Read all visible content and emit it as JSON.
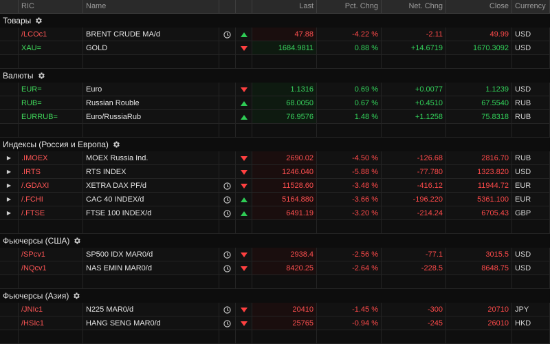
{
  "columns": {
    "ric": "RIC",
    "name": "Name",
    "last": "Last",
    "pct": "Pct. Chng",
    "net": "Net. Chng",
    "close": "Close",
    "currency": "Currency"
  },
  "sections": [
    {
      "title": "Товары",
      "rows": [
        {
          "expand": false,
          "ric": "/LCOc1",
          "ric_color": "red",
          "name": "BRENT CRUDE MA/d",
          "clock": true,
          "dir": "up",
          "last": "47.88",
          "last_color": "red",
          "pct": "-4.22 %",
          "pct_color": "red",
          "net": "-2.11",
          "net_color": "red",
          "close": "49.99",
          "close_color": "red",
          "currency": "USD"
        },
        {
          "expand": false,
          "ric": "XAU=",
          "ric_color": "green",
          "name": "GOLD",
          "clock": false,
          "dir": "down",
          "last": "1684.9811",
          "last_color": "green",
          "pct": "0.88 %",
          "pct_color": "green",
          "net": "+14.6719",
          "net_color": "green",
          "close": "1670.3092",
          "close_color": "green",
          "currency": "USD"
        }
      ]
    },
    {
      "title": "Валюты",
      "rows": [
        {
          "expand": false,
          "ric": "EUR=",
          "ric_color": "green",
          "name": "Euro",
          "clock": false,
          "dir": "down",
          "last": "1.1316",
          "last_color": "green",
          "pct": "0.69 %",
          "pct_color": "green",
          "net": "+0.0077",
          "net_color": "green",
          "close": "1.1239",
          "close_color": "green",
          "currency": "USD"
        },
        {
          "expand": false,
          "ric": "RUB=",
          "ric_color": "green",
          "name": "Russian Rouble",
          "clock": false,
          "dir": "up",
          "last": "68.0050",
          "last_color": "green",
          "pct": "0.67 %",
          "pct_color": "green",
          "net": "+0.4510",
          "net_color": "green",
          "close": "67.5540",
          "close_color": "green",
          "currency": "RUB"
        },
        {
          "expand": false,
          "ric": "EURRUB=",
          "ric_color": "green",
          "name": "Euro/RussiaRub",
          "clock": false,
          "dir": "up",
          "last": "76.9576",
          "last_color": "green",
          "pct": "1.48 %",
          "pct_color": "green",
          "net": "+1.1258",
          "net_color": "green",
          "close": "75.8318",
          "close_color": "green",
          "currency": "RUB"
        }
      ]
    },
    {
      "title": "Индексы (Россия и Европа)",
      "rows": [
        {
          "expand": true,
          "ric": ".IMOEX",
          "ric_color": "red",
          "name": "MOEX Russia Ind.",
          "clock": false,
          "dir": "down",
          "last": "2690.02",
          "last_color": "red",
          "pct": "-4.50 %",
          "pct_color": "red",
          "net": "-126.68",
          "net_color": "red",
          "close": "2816.70",
          "close_color": "red",
          "currency": "RUB"
        },
        {
          "expand": true,
          "ric": ".IRTS",
          "ric_color": "red",
          "name": "RTS INDEX",
          "clock": false,
          "dir": "down",
          "last": "1246.040",
          "last_color": "red",
          "pct": "-5.88 %",
          "pct_color": "red",
          "net": "-77.780",
          "net_color": "red",
          "close": "1323.820",
          "close_color": "red",
          "currency": "USD"
        },
        {
          "expand": true,
          "ric": "/.GDAXI",
          "ric_color": "red",
          "name": "XETRA DAX PF/d",
          "clock": true,
          "dir": "down",
          "last": "11528.60",
          "last_color": "red",
          "pct": "-3.48 %",
          "pct_color": "red",
          "net": "-416.12",
          "net_color": "red",
          "close": "11944.72",
          "close_color": "red",
          "currency": "EUR"
        },
        {
          "expand": true,
          "ric": "/.FCHI",
          "ric_color": "red",
          "name": "CAC 40 INDEX/d",
          "clock": true,
          "dir": "up",
          "last": "5164.880",
          "last_color": "red",
          "pct": "-3.66 %",
          "pct_color": "red",
          "net": "-196.220",
          "net_color": "red",
          "close": "5361.100",
          "close_color": "red",
          "currency": "EUR"
        },
        {
          "expand": true,
          "ric": "/.FTSE",
          "ric_color": "red",
          "name": "FTSE 100 INDEX/d",
          "clock": true,
          "dir": "up",
          "last": "6491.19",
          "last_color": "red",
          "pct": "-3.20 %",
          "pct_color": "red",
          "net": "-214.24",
          "net_color": "red",
          "close": "6705.43",
          "close_color": "red",
          "currency": "GBP"
        }
      ]
    },
    {
      "title": "Фьючерсы (США)",
      "rows": [
        {
          "expand": false,
          "ric": "/SPcv1",
          "ric_color": "red",
          "name": "SP500 IDX MAR0/d",
          "clock": true,
          "dir": "down",
          "last": "2938.4",
          "last_color": "red",
          "pct": "-2.56 %",
          "pct_color": "red",
          "net": "-77.1",
          "net_color": "red",
          "close": "3015.5",
          "close_color": "red",
          "currency": "USD"
        },
        {
          "expand": false,
          "ric": "/NQcv1",
          "ric_color": "red",
          "name": "NAS EMIN MAR0/d",
          "clock": true,
          "dir": "down",
          "last": "8420.25",
          "last_color": "red",
          "pct": "-2.64 %",
          "pct_color": "red",
          "net": "-228.5",
          "net_color": "red",
          "close": "8648.75",
          "close_color": "red",
          "currency": "USD"
        }
      ]
    },
    {
      "title": "Фьючерсы (Азия)",
      "rows": [
        {
          "expand": false,
          "ric": "/JNIc1",
          "ric_color": "red",
          "name": "N225 MAR0/d",
          "clock": true,
          "dir": "down",
          "last": "20410",
          "last_color": "red",
          "pct": "-1.45 %",
          "pct_color": "red",
          "net": "-300",
          "net_color": "red",
          "close": "20710",
          "close_color": "red",
          "currency": "JPY"
        },
        {
          "expand": false,
          "ric": "/HSIc1",
          "ric_color": "red",
          "name": "HANG SENG MAR0/d",
          "clock": true,
          "dir": "down",
          "last": "25765",
          "last_color": "red",
          "pct": "-0.94 %",
          "pct_color": "red",
          "net": "-245",
          "net_color": "red",
          "close": "26010",
          "close_color": "red",
          "currency": "HKD"
        }
      ]
    }
  ]
}
